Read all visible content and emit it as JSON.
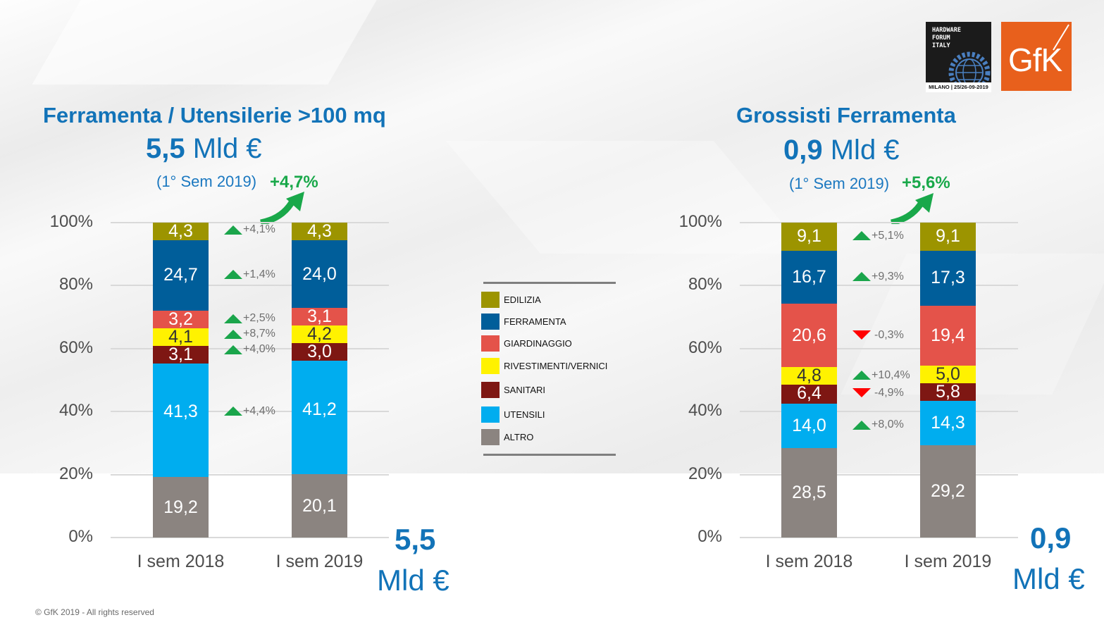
{
  "logos": {
    "hardware_forum": {
      "lines": [
        "HARDWARE",
        "FORUM",
        "ITALY"
      ],
      "footer": "MILANO | 25/26-09-2019"
    },
    "gfk": {
      "text": "GfK"
    }
  },
  "footer": {
    "copyright": "© GfK 2019 - All rights reserved"
  },
  "legend": {
    "items": [
      {
        "label": "EDILIZIA",
        "color": "#9c9400"
      },
      {
        "label": "FERRAMENTA",
        "color": "#005e9a"
      },
      {
        "label": "GIARDINAGGIO",
        "color": "#e4534a"
      },
      {
        "label": "RIVESTIMENTI/VERNICI",
        "color": "#fff200"
      },
      {
        "label": "SANITARI",
        "color": "#7e1713"
      },
      {
        "label": "UTENSILI",
        "color": "#00adef"
      },
      {
        "label": "ALTRO",
        "color": "#8b8480"
      }
    ]
  },
  "chart_data": [
    {
      "type": "bar",
      "stacked": true,
      "title": "Ferramenta / Utensilerie >100 mq",
      "subtitle_value": "5,5",
      "subtitle_unit": "Mld €",
      "period_note": "(1° Sem 2019)",
      "growth": "+4,7%",
      "total_value": "5,5",
      "total_unit": "Mld €",
      "categories": [
        "I sem 2018",
        "I sem 2019"
      ],
      "y_ticks": [
        "0%",
        "20%",
        "40%",
        "60%",
        "80%",
        "100%"
      ],
      "ylim": [
        0,
        100
      ],
      "grid": true,
      "series": [
        {
          "name": "ALTRO",
          "values": [
            19.2,
            20.1
          ],
          "labels": [
            "19,2",
            "20,1"
          ],
          "color": "#8b8480",
          "label_dark": false
        },
        {
          "name": "UTENSILI",
          "values": [
            41.3,
            41.2
          ],
          "labels": [
            "41,3",
            "41,2"
          ],
          "color": "#00adef",
          "label_dark": false
        },
        {
          "name": "SANITARI",
          "values": [
            3.1,
            3.0
          ],
          "labels": [
            "3,1",
            "3,0"
          ],
          "color": "#7e1713",
          "label_dark": false
        },
        {
          "name": "RIVESTIMENTI/VERNICI",
          "values": [
            4.1,
            4.2
          ],
          "labels": [
            "4,1",
            "4,2"
          ],
          "color": "#fff200",
          "label_dark": true
        },
        {
          "name": "GIARDINAGGIO",
          "values": [
            3.2,
            3.1
          ],
          "labels": [
            "3,2",
            "3,1"
          ],
          "color": "#e4534a",
          "label_dark": false
        },
        {
          "name": "FERRAMENTA",
          "values": [
            24.7,
            24.0
          ],
          "labels": [
            "24,7",
            "24,0"
          ],
          "color": "#005e9a",
          "label_dark": false
        },
        {
          "name": "EDILIZIA",
          "values": [
            4.3,
            4.3
          ],
          "labels": [
            "4,3",
            "4,3"
          ],
          "color": "#9c9400",
          "label_dark": false
        }
      ],
      "changes": [
        {
          "series": "EDILIZIA",
          "text": "+4,1%",
          "direction": "up"
        },
        {
          "series": "FERRAMENTA",
          "text": "+1,4%",
          "direction": "up"
        },
        {
          "series": "GIARDINAGGIO",
          "text": "+2,5%",
          "direction": "up"
        },
        {
          "series": "RIVESTIMENTI/VERNICI",
          "text": "+8,7%",
          "direction": "up"
        },
        {
          "series": "SANITARI",
          "text": "+4,0%",
          "direction": "up"
        },
        {
          "series": "UTENSILI",
          "text": "+4,4%",
          "direction": "up"
        }
      ]
    },
    {
      "type": "bar",
      "stacked": true,
      "title": "Grossisti Ferramenta",
      "subtitle_value": "0,9",
      "subtitle_unit": "Mld €",
      "period_note": "(1° Sem 2019)",
      "growth": "+5,6%",
      "total_value": "0,9",
      "total_unit": "Mld €",
      "categories": [
        "I sem 2018",
        "I sem 2019"
      ],
      "y_ticks": [
        "0%",
        "20%",
        "40%",
        "60%",
        "80%",
        "100%"
      ],
      "ylim": [
        0,
        100
      ],
      "grid": true,
      "series": [
        {
          "name": "ALTRO",
          "values": [
            28.5,
            29.2
          ],
          "labels": [
            "28,5",
            "29,2"
          ],
          "color": "#8b8480",
          "label_dark": false
        },
        {
          "name": "UTENSILI",
          "values": [
            14.0,
            14.3
          ],
          "labels": [
            "14,0",
            "14,3"
          ],
          "color": "#00adef",
          "label_dark": false
        },
        {
          "name": "SANITARI",
          "values": [
            6.4,
            5.8
          ],
          "labels": [
            "6,4",
            "5,8"
          ],
          "color": "#7e1713",
          "label_dark": false
        },
        {
          "name": "RIVESTIMENTI/VERNICI",
          "values": [
            4.8,
            5.0
          ],
          "labels": [
            "4,8",
            "5,0"
          ],
          "color": "#fff200",
          "label_dark": true
        },
        {
          "name": "GIARDINAGGIO",
          "values": [
            20.6,
            19.4
          ],
          "labels": [
            "20,6",
            "19,4"
          ],
          "color": "#e4534a",
          "label_dark": false
        },
        {
          "name": "FERRAMENTA",
          "values": [
            16.7,
            17.3
          ],
          "labels": [
            "16,7",
            "17,3"
          ],
          "color": "#005e9a",
          "label_dark": false
        },
        {
          "name": "EDILIZIA",
          "values": [
            9.1,
            9.1
          ],
          "labels": [
            "9,1",
            "9,1"
          ],
          "color": "#9c9400",
          "label_dark": false
        }
      ],
      "changes": [
        {
          "series": "EDILIZIA",
          "text": "+5,1%",
          "direction": "up"
        },
        {
          "series": "FERRAMENTA",
          "text": "+9,3%",
          "direction": "up"
        },
        {
          "series": "GIARDINAGGIO",
          "text": "-0,3%",
          "direction": "down"
        },
        {
          "series": "RIVESTIMENTI/VERNICI",
          "text": "+10,4%",
          "direction": "up"
        },
        {
          "series": "SANITARI",
          "text": "-4,9%",
          "direction": "down"
        },
        {
          "series": "UTENSILI",
          "text": "+8,0%",
          "direction": "up"
        }
      ]
    }
  ]
}
